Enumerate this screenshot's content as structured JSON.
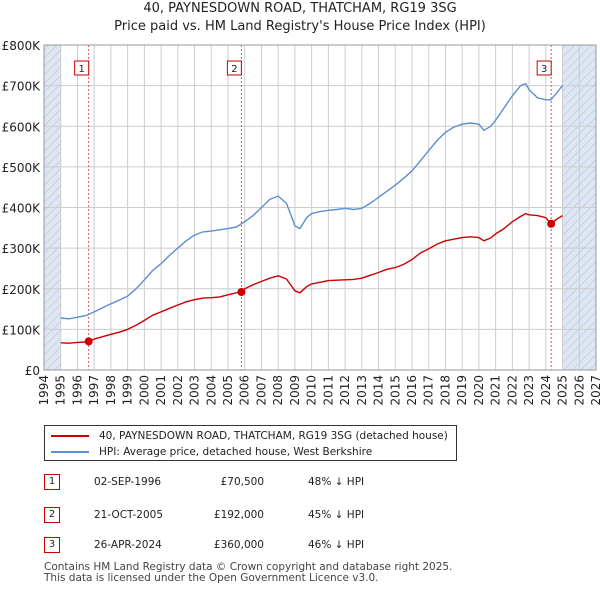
{
  "title": {
    "line1": "40, PAYNESDOWN ROAD, THATCHAM, RG19 3SG",
    "line2": "Price paid vs. HM Land Registry's House Price Index (HPI)"
  },
  "legend": {
    "property_label": "40, PAYNESDOWN ROAD, THATCHAM, RG19 3SG (detached house)",
    "hpi_label": "HPI: Average price, detached house, West Berkshire"
  },
  "sales": [
    {
      "num": "1",
      "date": "02-SEP-1996",
      "price": "£70,500",
      "hpi": "48% ↓ HPI"
    },
    {
      "num": "2",
      "date": "21-OCT-2005",
      "price": "£192,000",
      "hpi": "45% ↓ HPI"
    },
    {
      "num": "3",
      "date": "26-APR-2024",
      "price": "£360,000",
      "hpi": "46% ↓ HPI"
    }
  ],
  "footer": {
    "line1": "Contains HM Land Registry data © Crown copyright and database right 2025.",
    "line2": "This data is licensed under the Open Government Licence v3.0."
  },
  "colors": {
    "property": "#cc0000",
    "hpi": "#5b8fcf",
    "shade": "#dce6f4",
    "grid": "#cccccc"
  },
  "chart_data": {
    "type": "line",
    "title": "Price paid vs. HM Land Registry's House Price Index (HPI)",
    "xlim": [
      1994,
      2027
    ],
    "ylim": [
      0,
      800000
    ],
    "x_ticks": [
      1994,
      1995,
      1996,
      1997,
      1998,
      1999,
      2000,
      2001,
      2002,
      2003,
      2004,
      2005,
      2006,
      2007,
      2008,
      2009,
      2010,
      2011,
      2012,
      2013,
      2014,
      2015,
      2016,
      2017,
      2018,
      2019,
      2020,
      2021,
      2022,
      2023,
      2024,
      2025,
      2026,
      2027
    ],
    "y_ticks": [
      {
        "value": 0,
        "label": "£0"
      },
      {
        "value": 100000,
        "label": "£100K"
      },
      {
        "value": 200000,
        "label": "£200K"
      },
      {
        "value": 300000,
        "label": "£300K"
      },
      {
        "value": 400000,
        "label": "£400K"
      },
      {
        "value": 500000,
        "label": "£500K"
      },
      {
        "value": 600000,
        "label": "£600K"
      },
      {
        "value": 700000,
        "label": "£700K"
      },
      {
        "value": 800000,
        "label": "£800K"
      }
    ],
    "grid": true,
    "shaded_ranges": [
      [
        1994,
        1995
      ],
      [
        2025,
        2027
      ]
    ],
    "hatched_ranges": [
      [
        1994,
        1995
      ],
      [
        2025,
        2027
      ]
    ],
    "series": [
      {
        "name": "40, PAYNESDOWN ROAD, THATCHAM, RG19 3SG (detached house)",
        "color": "#cc0000",
        "x": [
          1995.0,
          1995.5,
          1996.0,
          1996.5,
          1996.67,
          1997.0,
          1997.5,
          1998.0,
          1998.5,
          1999.0,
          1999.5,
          2000.0,
          2000.5,
          2001.0,
          2001.5,
          2002.0,
          2002.5,
          2003.0,
          2003.5,
          2004.0,
          2004.5,
          2005.0,
          2005.5,
          2005.8,
          2006.0,
          2006.5,
          2007.0,
          2007.5,
          2008.0,
          2008.5,
          2009.0,
          2009.3,
          2009.7,
          2010.0,
          2010.5,
          2011.0,
          2011.5,
          2012.0,
          2012.5,
          2013.0,
          2013.5,
          2014.0,
          2014.5,
          2015.0,
          2015.5,
          2016.0,
          2016.5,
          2017.0,
          2017.5,
          2018.0,
          2018.5,
          2019.0,
          2019.5,
          2020.0,
          2020.3,
          2020.7,
          2021.0,
          2021.5,
          2022.0,
          2022.5,
          2022.8,
          2023.0,
          2023.5,
          2024.0,
          2024.32,
          2024.6,
          2025.0
        ],
        "values": [
          67000,
          66000,
          68000,
          69000,
          70500,
          76000,
          82000,
          88000,
          93000,
          100000,
          110000,
          122000,
          135000,
          143000,
          152000,
          160000,
          168000,
          173000,
          177000,
          178000,
          180000,
          185000,
          190000,
          192000,
          200000,
          210000,
          218000,
          226000,
          232000,
          224000,
          195000,
          190000,
          205000,
          212000,
          216000,
          220000,
          221000,
          222000,
          223000,
          226000,
          233000,
          240000,
          248000,
          252000,
          260000,
          272000,
          288000,
          298000,
          310000,
          318000,
          322000,
          326000,
          328000,
          326000,
          318000,
          325000,
          335000,
          348000,
          365000,
          378000,
          385000,
          382000,
          380000,
          375000,
          360000,
          370000,
          380000
        ]
      },
      {
        "name": "HPI: Average price, detached house, West Berkshire",
        "color": "#5b8fcf",
        "x": [
          1995.0,
          1995.5,
          1996.0,
          1996.5,
          1997.0,
          1997.5,
          1998.0,
          1998.5,
          1999.0,
          1999.5,
          2000.0,
          2000.5,
          2001.0,
          2001.5,
          2002.0,
          2002.5,
          2003.0,
          2003.5,
          2004.0,
          2004.5,
          2005.0,
          2005.5,
          2006.0,
          2006.5,
          2007.0,
          2007.5,
          2008.0,
          2008.5,
          2009.0,
          2009.3,
          2009.7,
          2010.0,
          2010.5,
          2011.0,
          2011.5,
          2012.0,
          2012.5,
          2013.0,
          2013.5,
          2014.0,
          2014.5,
          2015.0,
          2015.5,
          2016.0,
          2016.5,
          2017.0,
          2017.5,
          2018.0,
          2018.5,
          2019.0,
          2019.5,
          2020.0,
          2020.3,
          2020.7,
          2021.0,
          2021.5,
          2022.0,
          2022.5,
          2022.8,
          2023.0,
          2023.5,
          2024.0,
          2024.3,
          2024.6,
          2025.0
        ],
        "values": [
          128000,
          126000,
          130000,
          134000,
          143000,
          153000,
          163000,
          172000,
          182000,
          200000,
          222000,
          245000,
          262000,
          282000,
          300000,
          318000,
          332000,
          340000,
          342000,
          345000,
          348000,
          352000,
          365000,
          380000,
          400000,
          420000,
          428000,
          410000,
          355000,
          348000,
          375000,
          385000,
          390000,
          393000,
          395000,
          398000,
          395000,
          398000,
          410000,
          425000,
          440000,
          455000,
          472000,
          490000,
          515000,
          540000,
          565000,
          585000,
          598000,
          605000,
          608000,
          605000,
          590000,
          600000,
          615000,
          645000,
          675000,
          700000,
          705000,
          690000,
          670000,
          665000,
          665000,
          680000,
          700000
        ]
      }
    ],
    "sale_markers": [
      {
        "label": "1",
        "x": 1996.67,
        "value": 70500
      },
      {
        "label": "2",
        "x": 2005.8,
        "value": 192000
      },
      {
        "label": "3",
        "x": 2024.32,
        "value": 360000
      }
    ]
  }
}
